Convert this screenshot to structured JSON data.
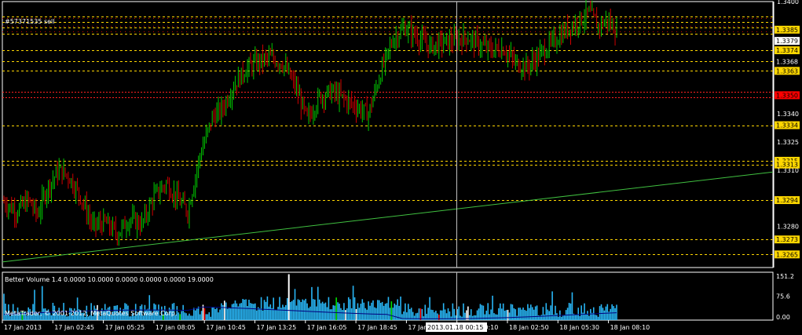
{
  "app": {
    "order_label": "#57371535 sell",
    "copyright": "MetaTrader, © 2001-2012, MetaQuotes Software Corp.",
    "indicator_label": "Better Volume 1.4 0.0000 10.0000 0.0000 0.0000 0.0000 19.0000",
    "cursor_time": "2013.01.18 00:15"
  },
  "colors": {
    "bull_candle": "#00c800",
    "bear_candle": "#d00000",
    "grid_border": "#ffffff",
    "level_line": "#ffd700",
    "red_level": "#ff2020",
    "trendline": "#40c040",
    "price_tag_bg": "#ffd700",
    "current_tag_bg": "#ffffff",
    "red_tag_bg": "#ff0000",
    "volume_blue": "#29b6f6",
    "volume_red": "#ff0000",
    "volume_green": "#00e000",
    "volume_white": "#ffffff",
    "volume_ma": "#000080"
  },
  "chart_data": {
    "type": "candlestick",
    "ylim": [
      1.3258,
      1.34
    ],
    "y_ticks": [
      "1.3400",
      "1.3385",
      "1.3379",
      "1.3374",
      "1.3368",
      "1.3363",
      "1.3340",
      "1.3334",
      "1.3325",
      "1.3315",
      "1.3313",
      "1.3310",
      "1.3294",
      "1.3280",
      "1.3273",
      "1.3265"
    ],
    "level_lines": [
      {
        "price": 1.3392,
        "color": "level"
      },
      {
        "price": 1.3389,
        "color": "level"
      },
      {
        "price": 1.3386,
        "color": "level"
      },
      {
        "price": 1.3383,
        "color": "level"
      },
      {
        "price": 1.3374,
        "color": "level"
      },
      {
        "price": 1.3368,
        "color": "level"
      },
      {
        "price": 1.3363,
        "color": "level"
      },
      {
        "price": 1.3352,
        "color": "red"
      },
      {
        "price": 1.3349,
        "color": "red"
      },
      {
        "price": 1.3334,
        "color": "level"
      },
      {
        "price": 1.3315,
        "color": "level"
      },
      {
        "price": 1.3313,
        "color": "level"
      },
      {
        "price": 1.3294,
        "color": "level"
      },
      {
        "price": 1.3273,
        "color": "level"
      },
      {
        "price": 1.3265,
        "color": "level"
      }
    ],
    "price_tags": [
      {
        "text": "1.3385",
        "price": 1.3385,
        "style": "level"
      },
      {
        "text": "1.3379",
        "price": 1.3379,
        "style": "current"
      },
      {
        "text": "1.3374",
        "price": 1.3374,
        "style": "level"
      },
      {
        "text": "1.3368",
        "price": 1.3368,
        "style": "plain"
      },
      {
        "text": "1.3363",
        "price": 1.3363,
        "style": "level"
      },
      {
        "text": "1.3350",
        "price": 1.335,
        "style": "red"
      },
      {
        "text": "1.3334",
        "price": 1.3334,
        "style": "level"
      },
      {
        "text": "1.3315",
        "price": 1.3315,
        "style": "level"
      },
      {
        "text": "1.3313",
        "price": 1.3313,
        "style": "level"
      },
      {
        "text": "1.3294",
        "price": 1.3294,
        "style": "level"
      },
      {
        "text": "1.3273",
        "price": 1.3273,
        "style": "level"
      },
      {
        "text": "1.3265",
        "price": 1.3265,
        "style": "level"
      }
    ],
    "axis_prices": [
      "1.3400",
      "1.3340",
      "1.3325",
      "1.3310",
      "1.3280"
    ],
    "trendline": {
      "start_price": 1.3261,
      "end_price": 1.3309
    },
    "anchors": [
      [
        0,
        1.3293
      ],
      [
        8,
        1.3288
      ],
      [
        16,
        1.3294
      ],
      [
        22,
        1.3286
      ],
      [
        28,
        1.33
      ],
      [
        36,
        1.331
      ],
      [
        42,
        1.3307
      ],
      [
        50,
        1.3296
      ],
      [
        58,
        1.328
      ],
      [
        66,
        1.3282
      ],
      [
        74,
        1.3276
      ],
      [
        82,
        1.3284
      ],
      [
        90,
        1.3281
      ],
      [
        98,
        1.3296
      ],
      [
        106,
        1.3303
      ],
      [
        114,
        1.3294
      ],
      [
        120,
        1.3288
      ],
      [
        128,
        1.3318
      ],
      [
        136,
        1.3338
      ],
      [
        142,
        1.3342
      ],
      [
        150,
        1.3355
      ],
      [
        158,
        1.3364
      ],
      [
        166,
        1.3368
      ],
      [
        174,
        1.337
      ],
      [
        182,
        1.3367
      ],
      [
        190,
        1.3355
      ],
      [
        198,
        1.3337
      ],
      [
        206,
        1.3349
      ],
      [
        214,
        1.3352
      ],
      [
        222,
        1.3348
      ],
      [
        230,
        1.3344
      ],
      [
        238,
        1.334
      ],
      [
        246,
        1.3362
      ],
      [
        254,
        1.338
      ],
      [
        262,
        1.3386
      ],
      [
        270,
        1.3381
      ],
      [
        278,
        1.3376
      ],
      [
        286,
        1.3378
      ],
      [
        294,
        1.3379
      ],
      [
        302,
        1.3381
      ],
      [
        310,
        1.3377
      ],
      [
        318,
        1.3374
      ],
      [
        326,
        1.3375
      ],
      [
        334,
        1.3367
      ],
      [
        342,
        1.3365
      ],
      [
        350,
        1.3372
      ],
      [
        358,
        1.3378
      ],
      [
        366,
        1.3384
      ],
      [
        374,
        1.3389
      ],
      [
        382,
        1.3394
      ],
      [
        388,
        1.3387
      ],
      [
        394,
        1.339
      ],
      [
        400,
        1.3384
      ]
    ],
    "x_labels": [
      "17 Jan 2013",
      "17 Jan 02:45",
      "17 Jan 05:25",
      "17 Jan 08:05",
      "17 Jan 10:45",
      "17 Jan 13:25",
      "17 Jan 16:05",
      "17 Jan 18:45",
      "17 Jan 21:25",
      "18 Jan 00:10",
      "18 Jan 02:50",
      "18 Jan 05:30",
      "18 Jan 08:10"
    ],
    "volume_axis": [
      "151.2",
      "75.6",
      "0.00"
    ]
  }
}
